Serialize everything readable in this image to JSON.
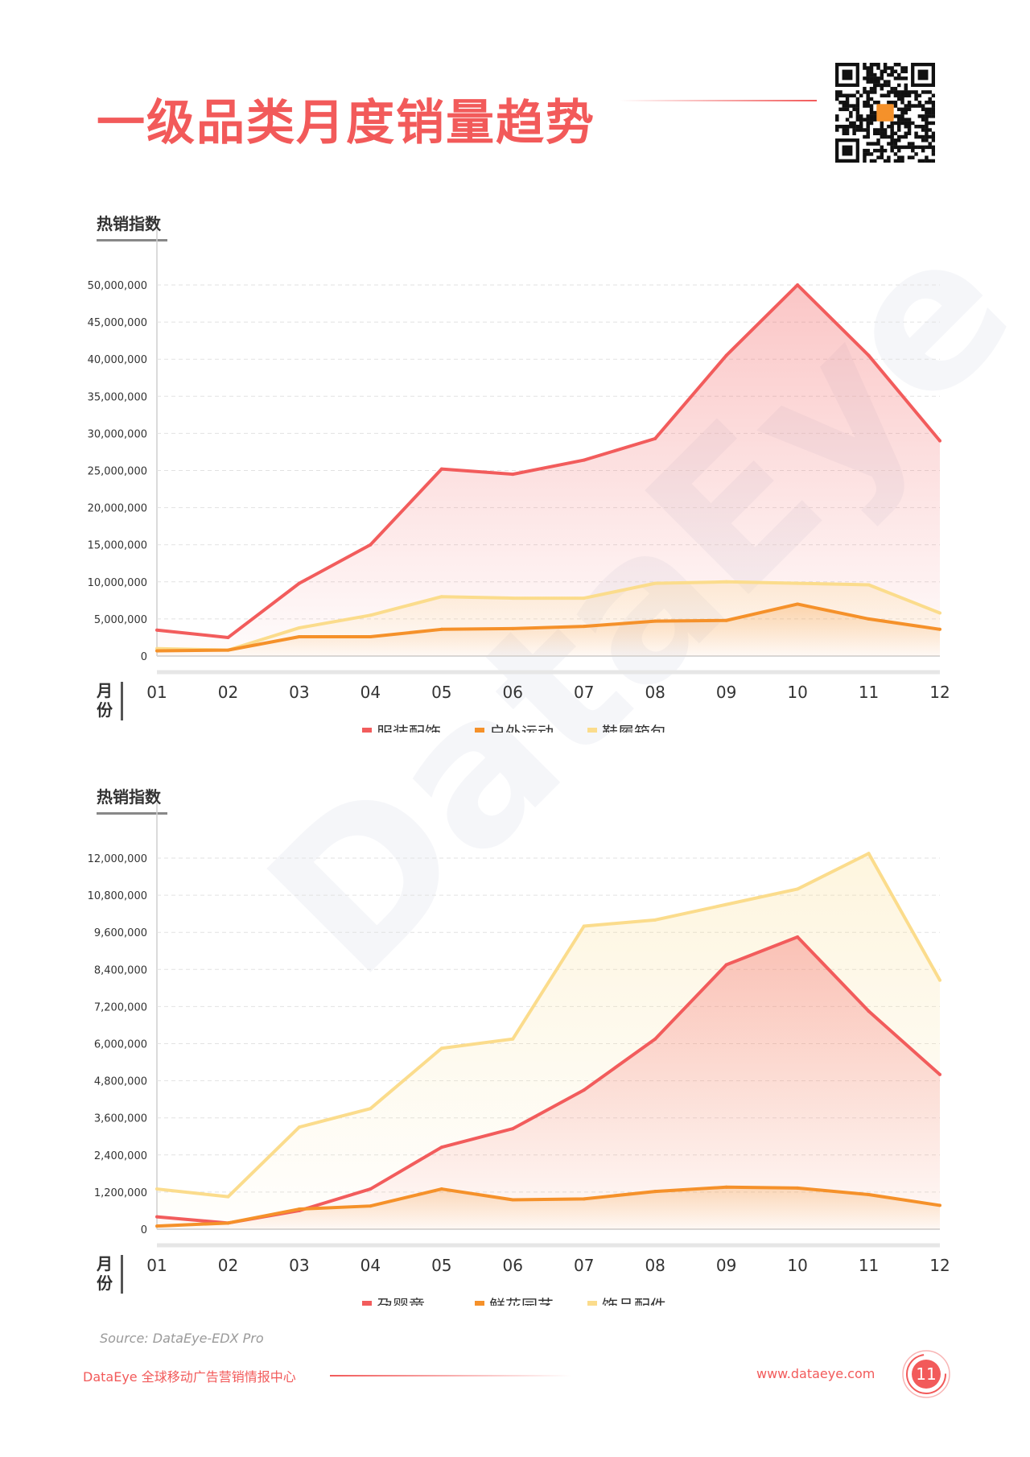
{
  "page": {
    "title": "一级品类月度销量趋势",
    "watermark": "DataEye",
    "source": "Source: DataEye-EDX Pro",
    "footer_left": "DataEye 全球移动广告营销情报中心",
    "footer_right": "www.dataeye.com",
    "page_number": "11",
    "accent_color": "#f25a5a"
  },
  "chart_data": [
    {
      "type": "area",
      "ylabel": "热销指数",
      "xlabel": "月份",
      "categories": [
        "01",
        "02",
        "03",
        "04",
        "05",
        "06",
        "07",
        "08",
        "09",
        "10",
        "11",
        "12"
      ],
      "ylim": [
        0,
        50000000
      ],
      "y_ticks": [
        0,
        5000000,
        10000000,
        15000000,
        20000000,
        25000000,
        30000000,
        35000000,
        40000000,
        45000000,
        50000000
      ],
      "y_tick_labels": [
        "0",
        "5,000,000",
        "10,000,000",
        "15,000,000",
        "20,000,000",
        "25,000,000",
        "30,000,000",
        "35,000,000",
        "40,000,000",
        "45,000,000",
        "50,000,000"
      ],
      "grid": true,
      "legend_position": "bottom",
      "series": [
        {
          "name": "服装配饰",
          "color": "#f25c5c",
          "values": [
            3500000,
            2500000,
            9800000,
            15000000,
            25200000,
            24500000,
            26400000,
            29300000,
            40500000,
            50000000,
            40500000,
            29000000
          ]
        },
        {
          "name": "户外运动",
          "color": "#f5912a",
          "values": [
            700000,
            800000,
            2600000,
            2600000,
            3600000,
            3700000,
            4000000,
            4700000,
            4800000,
            7000000,
            5000000,
            3600000
          ]
        },
        {
          "name": "鞋履箱包",
          "color": "#fbdc8c",
          "values": [
            1000000,
            800000,
            3800000,
            5500000,
            8000000,
            7800000,
            7800000,
            9800000,
            10000000,
            9800000,
            9600000,
            5800000
          ]
        }
      ]
    },
    {
      "type": "area",
      "ylabel": "热销指数",
      "xlabel": "月份",
      "categories": [
        "01",
        "02",
        "03",
        "04",
        "05",
        "06",
        "07",
        "08",
        "09",
        "10",
        "11",
        "12"
      ],
      "ylim": [
        0,
        12000000
      ],
      "y_ticks": [
        0,
        1200000,
        2400000,
        3600000,
        4800000,
        6000000,
        7200000,
        8400000,
        9600000,
        10800000,
        12000000
      ],
      "y_tick_labels": [
        "0",
        "1,200,000",
        "2,400,000",
        "3,600,000",
        "4,800,000",
        "6,000,000",
        "7,200,000",
        "8,400,000",
        "9,600,000",
        "10,800,000",
        "12,000,000"
      ],
      "grid": true,
      "legend_position": "bottom",
      "series": [
        {
          "name": "孕婴童",
          "color": "#f25c5c",
          "values": [
            400000,
            200000,
            600000,
            1300000,
            2650000,
            3250000,
            4500000,
            6150000,
            8550000,
            9450000,
            7050000,
            5000000
          ]
        },
        {
          "name": "鲜花园艺",
          "color": "#f5912a",
          "values": [
            100000,
            200000,
            650000,
            750000,
            1300000,
            950000,
            980000,
            1220000,
            1360000,
            1330000,
            1120000,
            770000
          ]
        },
        {
          "name": "饰品配件",
          "color": "#fbdc8c",
          "values": [
            1300000,
            1050000,
            3300000,
            3900000,
            5850000,
            6150000,
            9800000,
            10000000,
            10500000,
            11000000,
            12150000,
            8050000
          ]
        }
      ]
    }
  ]
}
